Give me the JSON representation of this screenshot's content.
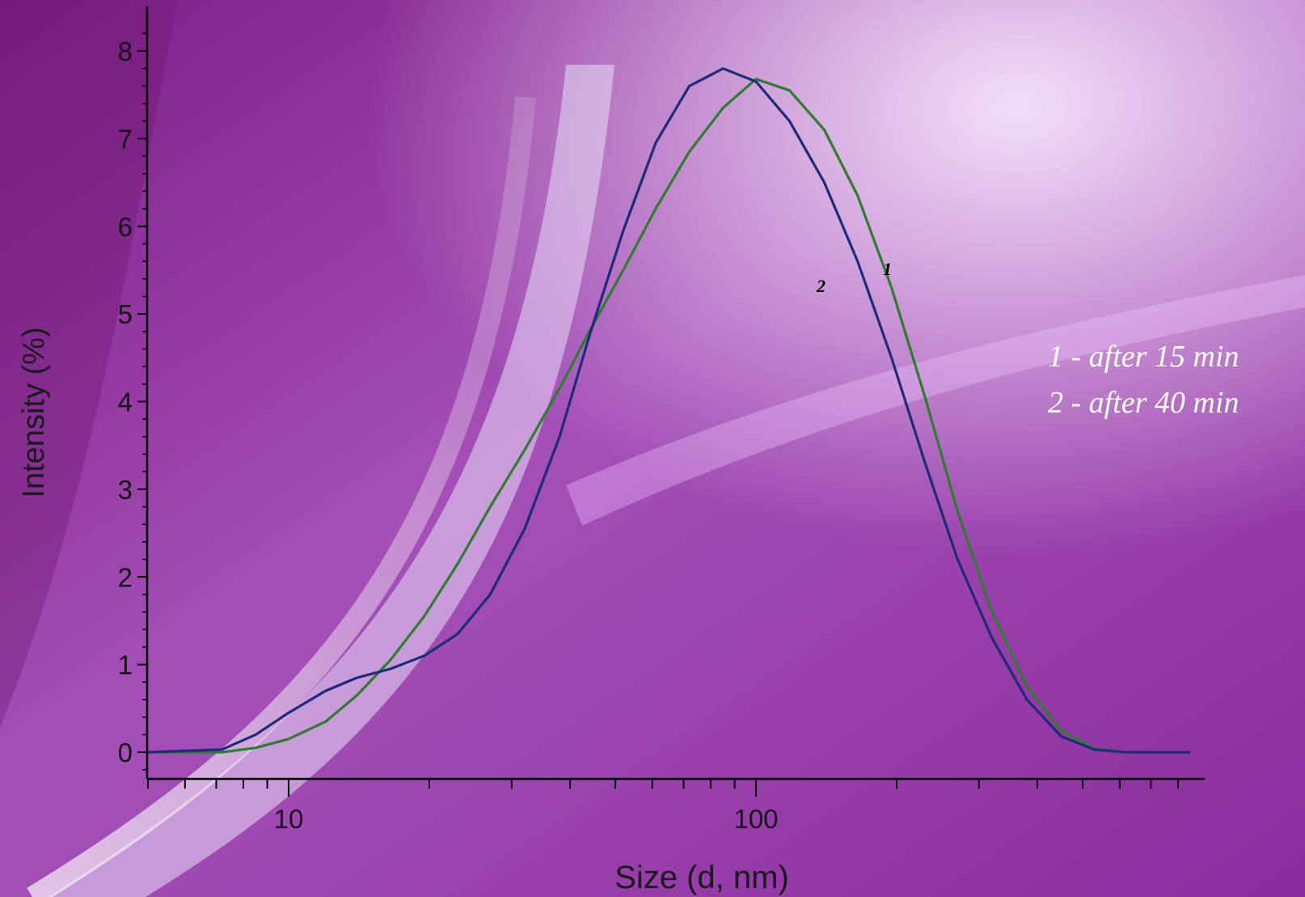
{
  "chart_data": {
    "type": "line",
    "xscale": "log",
    "xlabel": "Size (d, nm)",
    "ylabel": "Intensity (%)",
    "xlim": [
      5,
      850
    ],
    "ylim": [
      -0.3,
      8.5
    ],
    "x_ticks": [
      10,
      100
    ],
    "x_tick_labels": [
      "10",
      "100"
    ],
    "y_ticks": [
      0,
      1,
      2,
      3,
      4,
      5,
      6,
      7,
      8
    ],
    "y_tick_labels": [
      "0",
      "1",
      "2",
      "3",
      "4",
      "5",
      "6",
      "7",
      "8"
    ],
    "grid": false,
    "legend_position": "right",
    "legend": [
      "1 - after 15 min",
      "2 - after 40 min"
    ],
    "series": [
      {
        "label": "1",
        "color": "#2e7d2e",
        "x": [
          5,
          7.2,
          8.5,
          10,
          12,
          14,
          16.5,
          19.5,
          23,
          27,
          32,
          38,
          44,
          52,
          61,
          72,
          85,
          100,
          118,
          140,
          165,
          195,
          230,
          270,
          320,
          380,
          450,
          530,
          620,
          850
        ],
        "y": [
          0,
          0,
          0.05,
          0.15,
          0.35,
          0.65,
          1.05,
          1.55,
          2.15,
          2.8,
          3.45,
          4.15,
          4.8,
          5.5,
          6.2,
          6.85,
          7.35,
          7.68,
          7.55,
          7.1,
          6.35,
          5.3,
          4.05,
          2.75,
          1.6,
          0.75,
          0.25,
          0.04,
          0,
          0
        ]
      },
      {
        "label": "2",
        "color": "#1f2a7a",
        "x": [
          5,
          7.2,
          8.5,
          10,
          12,
          14,
          16.5,
          19.5,
          23,
          27,
          32,
          38,
          44,
          52,
          61,
          72,
          85,
          100,
          118,
          140,
          165,
          195,
          230,
          270,
          320,
          380,
          450,
          530,
          620,
          850
        ],
        "y": [
          0,
          0.03,
          0.2,
          0.45,
          0.7,
          0.85,
          0.95,
          1.1,
          1.35,
          1.8,
          2.55,
          3.6,
          4.75,
          5.95,
          6.95,
          7.6,
          7.8,
          7.65,
          7.2,
          6.5,
          5.6,
          4.5,
          3.3,
          2.2,
          1.3,
          0.6,
          0.18,
          0.03,
          0,
          0
        ]
      }
    ]
  }
}
